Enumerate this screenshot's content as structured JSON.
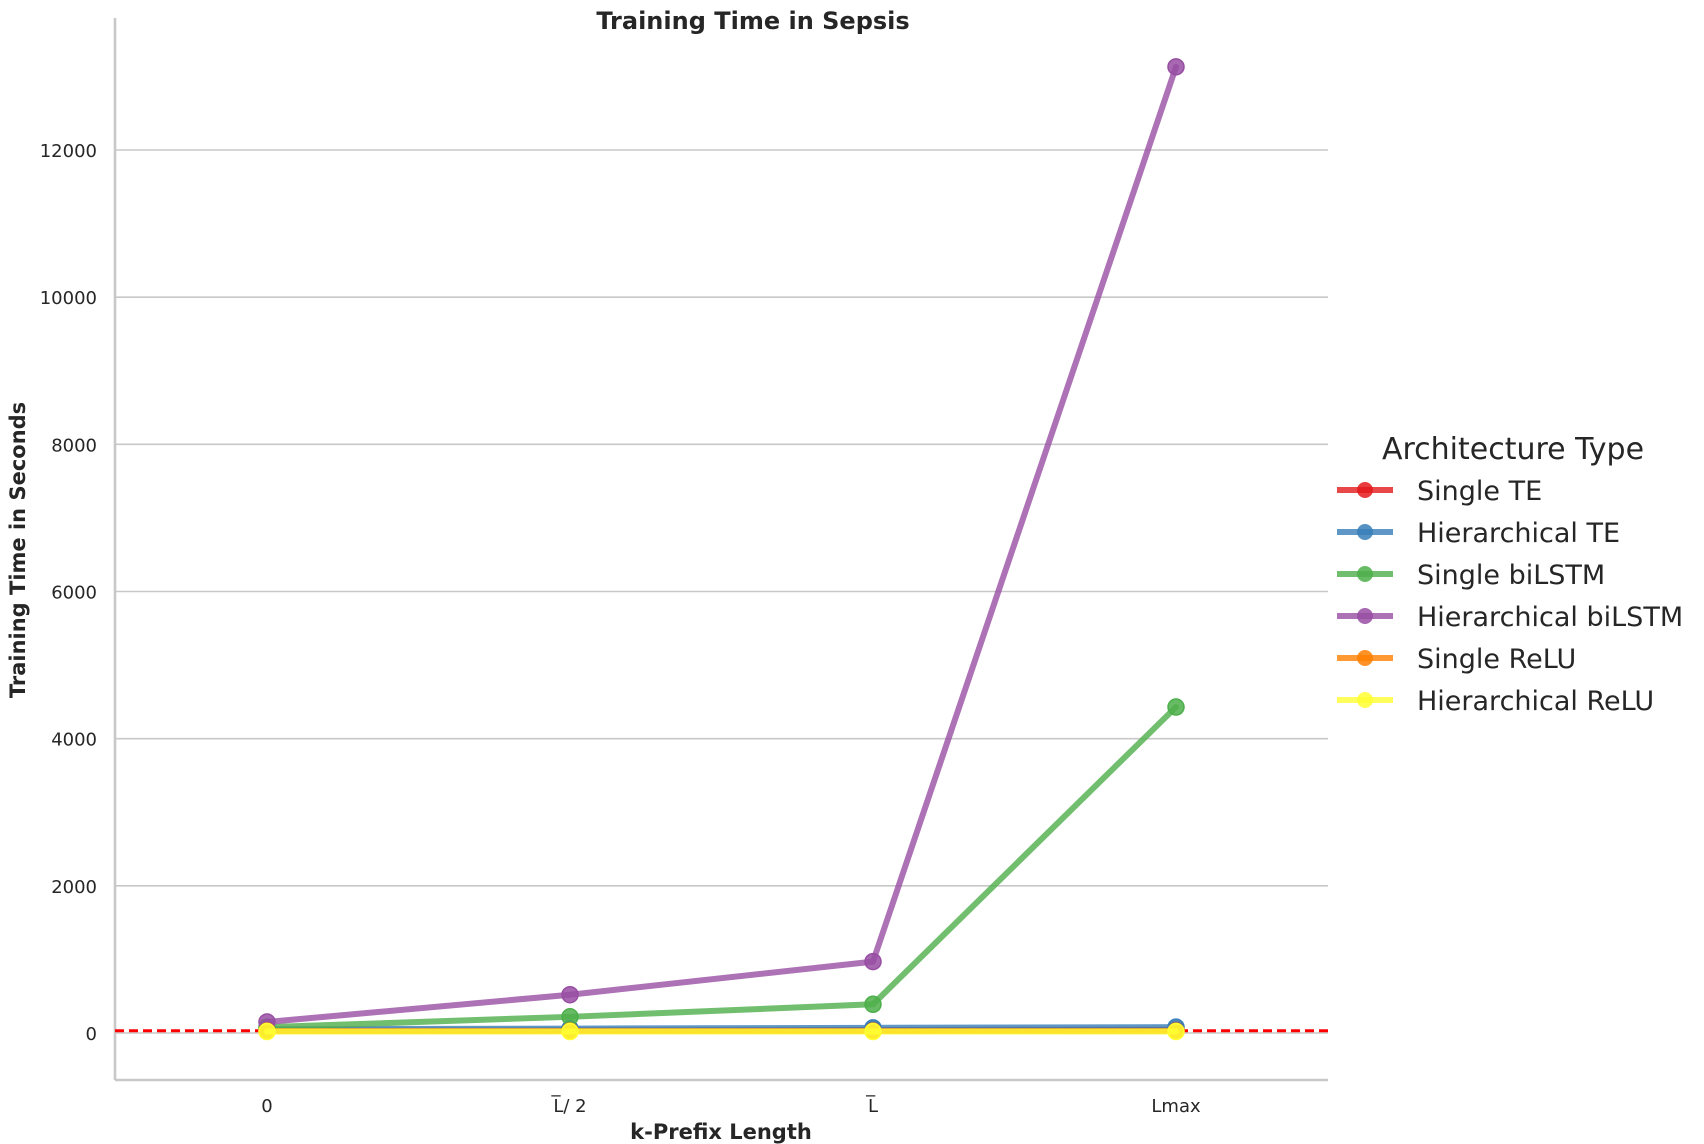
{
  "chart_data": {
    "type": "line",
    "title": "Training Time in Sepsis",
    "xlabel": "k-Prefix Length",
    "ylabel": "Training Time in Seconds",
    "categories": [
      "0",
      "L̅/ 2",
      "L̅",
      "Lmax"
    ],
    "yticks": [
      0,
      2000,
      4000,
      6000,
      8000,
      10000,
      12000
    ],
    "ylim": [
      -630,
      13800
    ],
    "grid": "horizontal",
    "legend_title": "Architecture Type",
    "legend_position": "right",
    "reference_line": {
      "y": 30,
      "color": "#ff0000",
      "style": "dashed"
    },
    "series": [
      {
        "name": "Single TE",
        "color": "#e41a1c",
        "values": [
          30,
          35,
          40,
          45
        ]
      },
      {
        "name": "Hierarchical TE",
        "color": "#377eb8",
        "values": [
          50,
          60,
          70,
          80
        ]
      },
      {
        "name": "Single biLSTM",
        "color": "#4daf4a",
        "values": [
          80,
          220,
          390,
          4430
        ]
      },
      {
        "name": "Hierarchical biLSTM",
        "color": "#984ea3",
        "values": [
          150,
          520,
          970,
          13130
        ]
      },
      {
        "name": "Single ReLU",
        "color": "#ff7f00",
        "values": [
          25,
          25,
          25,
          25
        ]
      },
      {
        "name": "Hierarchical ReLU",
        "color": "#ffff33",
        "values": [
          20,
          20,
          20,
          20
        ]
      }
    ]
  }
}
